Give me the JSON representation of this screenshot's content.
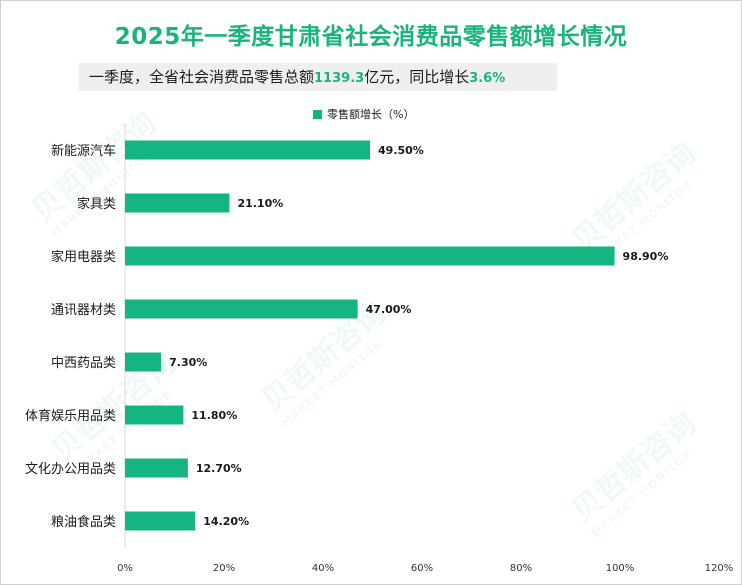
{
  "title": "2025年一季度甘肃省社会消费品零售额增长情况",
  "subtitle": {
    "text_before": "一季度，全省社会消费品零售总额",
    "total_value": "1139.3",
    "text_middle": "亿元，同比增长",
    "growth_value": "3.6%"
  },
  "watermark": {
    "cn": "贝哲斯咨询",
    "en": "MARKET MONITOR"
  },
  "colors": {
    "accent": "#19b37f",
    "bar": "#14b583"
  },
  "chart_data": {
    "type": "bar",
    "orientation": "horizontal",
    "title": "2025年一季度甘肃省社会消费品零售额增长情况",
    "legend": [
      "零售额增长（%）"
    ],
    "legend_position": "top",
    "categories": [
      "新能源汽车",
      "家具类",
      "家用电器类",
      "通讯器材类",
      "中西药品类",
      "体育娱乐用品类",
      "文化办公用品类",
      "粮油食品类"
    ],
    "values": [
      49.5,
      21.1,
      98.9,
      47.0,
      7.3,
      11.8,
      12.7,
      14.2
    ],
    "value_labels": [
      "49.50%",
      "21.10%",
      "98.90%",
      "47.00%",
      "7.30%",
      "11.80%",
      "12.70%",
      "14.20%"
    ],
    "xlim": [
      0,
      120
    ],
    "x_ticks": [
      0,
      20,
      40,
      60,
      80,
      100,
      120
    ],
    "x_tick_labels": [
      "0%",
      "20%",
      "40%",
      "60%",
      "80%",
      "100%",
      "120%"
    ],
    "grid": false
  }
}
